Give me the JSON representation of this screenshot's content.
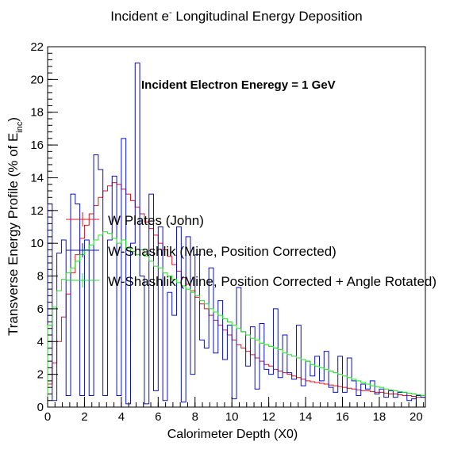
{
  "chart_data": {
    "type": "step",
    "title_main": "Incident e",
    "title_sup": "-",
    "title_rest": " Longitudinal Energy Deposition",
    "annotation": "Incident Electron Eneregy = 1 GeV",
    "xlabel": "Calorimeter Depth (X0)",
    "ylabel_main": "Transverse Energy Profile (% of E",
    "ylabel_sub": "inc",
    "ylabel_close": ")",
    "xlim": [
      0,
      20.5
    ],
    "ylim": [
      0,
      22
    ],
    "x_ticks": [
      "0",
      "2",
      "4",
      "6",
      "8",
      "10",
      "12",
      "14",
      "16",
      "18",
      "20"
    ],
    "y_ticks": [
      "0",
      "2",
      "4",
      "6",
      "8",
      "10",
      "12",
      "14",
      "16",
      "18",
      "20",
      "22"
    ],
    "grid": false,
    "legend_position": "left-middle",
    "series": [
      {
        "name": "W Plates (John)",
        "color": "#e0141e",
        "bin_width": 0.25,
        "values": [
          1.4,
          2.7,
          4.0,
          5.5,
          6.9,
          8.2,
          9.3,
          10.3,
          11.1,
          11.8,
          12.3,
          12.8,
          13.2,
          13.5,
          13.7,
          13.6,
          13.3,
          13.0,
          12.6,
          12.2,
          11.8,
          11.3,
          10.9,
          10.5,
          10.0,
          9.6,
          9.2,
          8.7,
          8.3,
          7.9,
          7.5,
          7.1,
          6.7,
          6.3,
          6.0,
          5.6,
          5.3,
          5.0,
          4.7,
          4.4,
          4.1,
          3.8,
          3.6,
          3.4,
          3.2,
          3.0,
          2.8,
          2.6,
          2.5,
          2.3,
          2.2,
          2.1,
          2.0,
          1.9,
          1.8,
          1.7,
          1.6,
          1.55,
          1.5,
          1.45,
          1.4,
          1.35,
          1.3,
          1.25,
          1.2,
          1.15,
          1.1,
          1.05,
          1.0,
          1.0,
          0.95,
          0.9,
          0.9,
          0.85,
          0.8,
          0.8,
          0.75,
          0.7,
          0.7,
          0.65,
          0.6,
          0.6
        ]
      },
      {
        "name": "W-Shashlik (Mine, Position Corrected)",
        "color": "#0a10c8",
        "bin_width": 0.25,
        "values": [
          12.4,
          0.4,
          9.4,
          10.2,
          0.7,
          13.0,
          12.4,
          0.7,
          10.2,
          0.7,
          15.4,
          14.5,
          0.7,
          10.2,
          14.1,
          0.7,
          16.4,
          0.2,
          10.0,
          21.0,
          8.0,
          0.2,
          13.0,
          1.0,
          11.0,
          0.4,
          7.0,
          5.6,
          11.0,
          0.3,
          10.4,
          2.0,
          9.3,
          4.1,
          3.6,
          8.5,
          3.3,
          6.5,
          2.9,
          5.0,
          0.5,
          7.3,
          4.6,
          2.5,
          4.9,
          1.1,
          5.1,
          2.3,
          2.0,
          6.0,
          1.8,
          4.4,
          2.1,
          1.7,
          5.0,
          1.3,
          2.8,
          1.9,
          3.1,
          1.6,
          3.4,
          1.2,
          0.9,
          3.1,
          0.9,
          3.0,
          1.6,
          0.7,
          1.4,
          1.1,
          1.6,
          0.8,
          1.1,
          0.6,
          1.0,
          0.6,
          0.9,
          0.9,
          0.4,
          0.5,
          0.7,
          0.6
        ]
      },
      {
        "name": "W-Shashlik (Mine, Position Corrected + Angle Rotated)",
        "color": "#18e818",
        "bin_width": 0.25,
        "values": [
          5.0,
          6.1,
          7.1,
          7.8,
          8.2,
          8.5,
          8.9,
          9.3,
          9.6,
          9.9,
          10.2,
          10.5,
          10.7,
          10.6,
          10.3,
          10.0,
          10.2,
          9.7,
          9.5,
          9.3,
          9.6,
          9.2,
          8.9,
          8.6,
          8.5,
          8.2,
          8.0,
          7.8,
          7.6,
          7.4,
          7.2,
          7.0,
          6.8,
          6.5,
          6.3,
          6.0,
          5.8,
          5.6,
          5.4,
          5.2,
          5.0,
          4.8,
          4.6,
          4.4,
          4.2,
          4.1,
          3.9,
          3.8,
          3.7,
          3.6,
          3.5,
          3.3,
          3.2,
          3.1,
          3.0,
          2.9,
          2.8,
          2.6,
          2.5,
          2.4,
          2.3,
          2.2,
          2.1,
          2.0,
          1.9,
          1.8,
          1.7,
          1.6,
          1.5,
          1.4,
          1.3,
          1.25,
          1.2,
          1.1,
          1.05,
          1.0,
          0.95,
          0.9,
          0.85,
          0.8,
          0.75,
          0.7
        ]
      }
    ]
  }
}
